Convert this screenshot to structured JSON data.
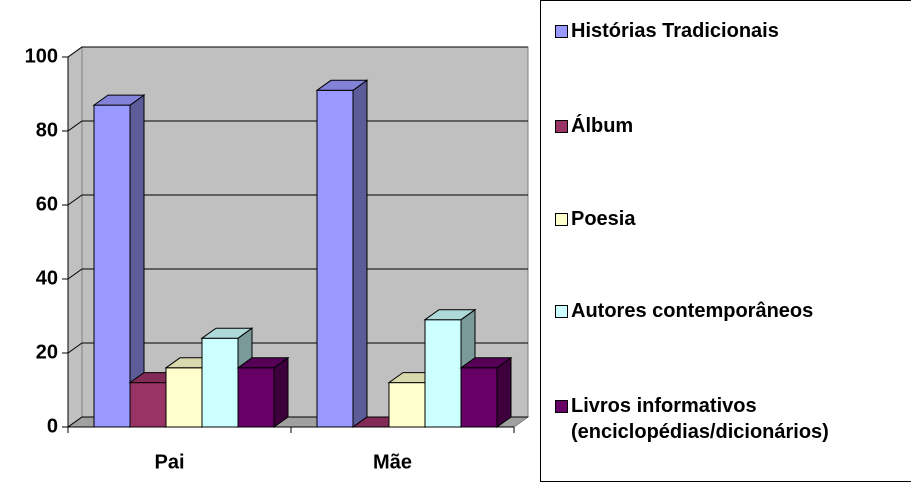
{
  "chart_data": {
    "type": "bar3d",
    "categories": [
      "Pai",
      "Mãe"
    ],
    "series": [
      {
        "name": "Histórias Tradicionais",
        "color": "#9999ff",
        "values": [
          87,
          91
        ]
      },
      {
        "name": "Álbum",
        "color": "#993366",
        "values": [
          12,
          0
        ]
      },
      {
        "name": "Poesia",
        "color": "#ffffcc",
        "values": [
          16,
          12
        ]
      },
      {
        "name": "Autores contemporâneos",
        "color": "#ccffff",
        "values": [
          24,
          29
        ]
      },
      {
        "name": "Livros informativos (enciclopédias/dicionários)",
        "color": "#660066",
        "values": [
          16,
          16
        ]
      }
    ],
    "ylim": [
      0,
      100
    ],
    "yticks": [
      0,
      20,
      40,
      60,
      80,
      100
    ],
    "grid": true,
    "legend": "right"
  }
}
